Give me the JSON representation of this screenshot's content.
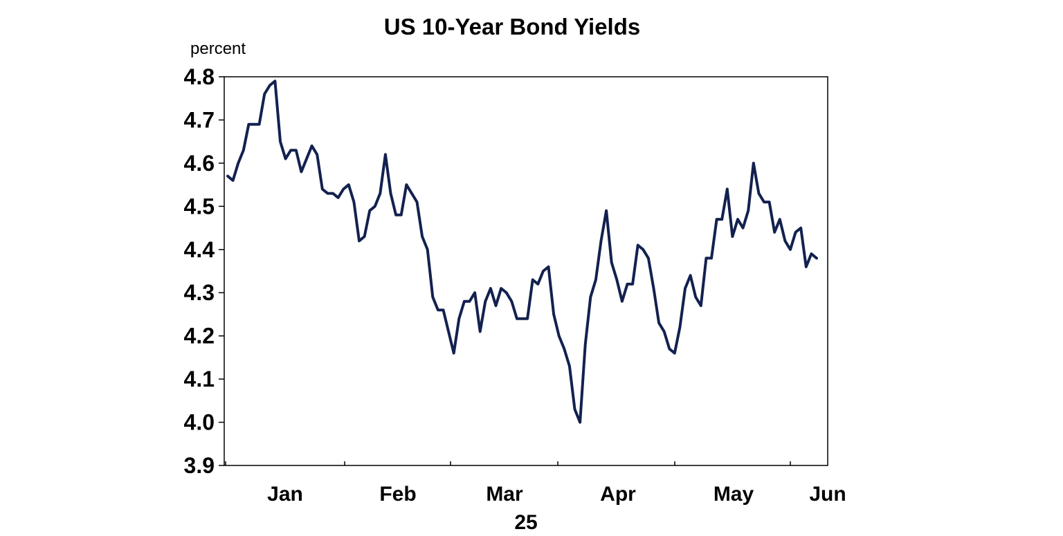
{
  "chart_data": {
    "type": "line",
    "title": "US 10-Year Bond Yields",
    "ylabel": "percent",
    "year_label": "25",
    "ylim": [
      3.9,
      4.8
    ],
    "yticks": [
      "4.8",
      "4.7",
      "4.6",
      "4.5",
      "4.4",
      "4.3",
      "4.2",
      "4.1",
      "4.0",
      "3.9"
    ],
    "xtick_labels": [
      "Jan",
      "Feb",
      "Mar",
      "Apr",
      "May",
      "Jun"
    ],
    "grid": false,
    "line_color": "#13214f",
    "series": [
      {
        "values": [
          4.57,
          4.56,
          4.6,
          4.63,
          4.69,
          4.69,
          4.69,
          4.76,
          4.78,
          4.79,
          4.65,
          4.61,
          4.63,
          4.63,
          4.58,
          4.61,
          4.64,
          4.62,
          4.54,
          4.53,
          4.53,
          4.52,
          4.54,
          4.55,
          4.51,
          4.42,
          4.43,
          4.49,
          4.5,
          4.53,
          4.62,
          4.53,
          4.48,
          4.48,
          4.55,
          4.53,
          4.51,
          4.43,
          4.4,
          4.29,
          4.26,
          4.26,
          4.21,
          4.16,
          4.24,
          4.28,
          4.28,
          4.3,
          4.21,
          4.28,
          4.31,
          4.27,
          4.31,
          4.3,
          4.28,
          4.24,
          4.24,
          4.24,
          4.33,
          4.32,
          4.35,
          4.36,
          4.25,
          4.2,
          4.17,
          4.13,
          4.03,
          4.0,
          4.18,
          4.29,
          4.33,
          4.42,
          4.49,
          4.37,
          4.33,
          4.28,
          4.32,
          4.32,
          4.41,
          4.4,
          4.38,
          4.31,
          4.23,
          4.21,
          4.17,
          4.16,
          4.22,
          4.31,
          4.34,
          4.29,
          4.27,
          4.38,
          4.38,
          4.47,
          4.47,
          4.54,
          4.43,
          4.47,
          4.45,
          4.49,
          4.6,
          4.53,
          4.51,
          4.51,
          4.44,
          4.47,
          4.42,
          4.4,
          4.44,
          4.45,
          4.36,
          4.39,
          4.38
        ]
      }
    ]
  }
}
